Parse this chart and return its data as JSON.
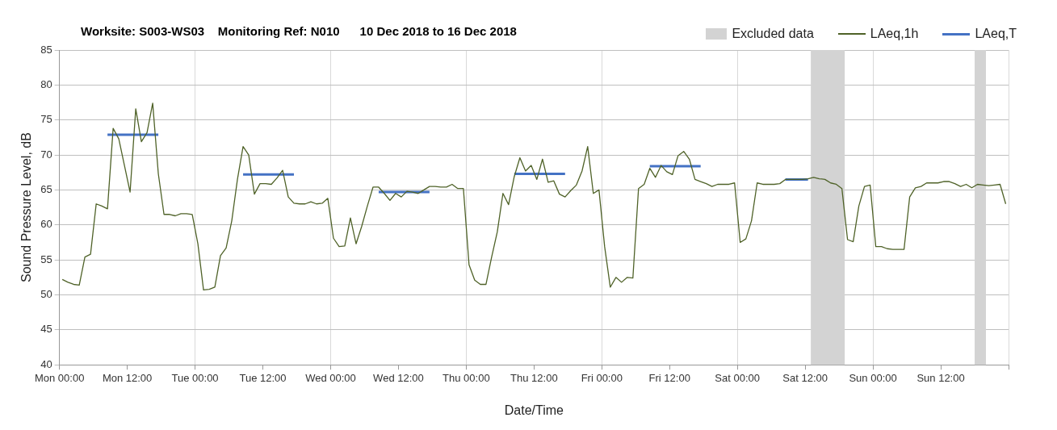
{
  "chart_data": {
    "type": "line",
    "title": "Worksite: S003-WS03    Monitoring Ref: N010      10 Dec 2018 to 16 Dec 2018",
    "xlabel": "Date/Time",
    "ylabel": "Sound Pressure Level, dB",
    "xlim": [
      "2018-12-10T00:00",
      "2018-12-17T00:00"
    ],
    "xticks": [
      {
        "value": "2018-12-10T00:00",
        "label": "Mon 00:00"
      },
      {
        "value": "2018-12-10T12:00",
        "label": "Mon 12:00"
      },
      {
        "value": "2018-12-11T00:00",
        "label": "Tue 00:00"
      },
      {
        "value": "2018-12-11T12:00",
        "label": "Tue 12:00"
      },
      {
        "value": "2018-12-12T00:00",
        "label": "Wed 00:00"
      },
      {
        "value": "2018-12-12T12:00",
        "label": "Wed 12:00"
      },
      {
        "value": "2018-12-13T00:00",
        "label": "Thu 00:00"
      },
      {
        "value": "2018-12-13T12:00",
        "label": "Thu 12:00"
      },
      {
        "value": "2018-12-14T00:00",
        "label": "Fri 00:00"
      },
      {
        "value": "2018-12-14T12:00",
        "label": "Fri 12:00"
      },
      {
        "value": "2018-12-15T00:00",
        "label": "Sat 00:00"
      },
      {
        "value": "2018-12-15T12:00",
        "label": "Sat 12:00"
      },
      {
        "value": "2018-12-16T00:00",
        "label": "Sun 00:00"
      },
      {
        "value": "2018-12-16T12:00",
        "label": "Sun 12:00"
      },
      {
        "value": "2018-12-17T00:00",
        "label": null
      }
    ],
    "ylim": [
      40,
      85
    ],
    "yticks": [
      40,
      45,
      50,
      55,
      60,
      65,
      70,
      75,
      80,
      85
    ],
    "grid": true,
    "legend": "top right",
    "marker": "none",
    "line_style": "solid",
    "bands": [
      {
        "axis": "x",
        "from": "2018-12-15T13:00",
        "to": "2018-12-15T19:00",
        "label": "Excluded data",
        "color": "#d3d3d3"
      },
      {
        "axis": "x",
        "from": "2018-12-16T18:00",
        "to": "2018-12-16T20:00",
        "color": "#d3d3d3"
      }
    ],
    "series": [
      {
        "name": "LAeq,1h",
        "color": "#4f6228",
        "x": [
          "2018-12-10T00:30",
          "2018-12-10T01:30",
          "2018-12-10T02:30",
          "2018-12-10T03:30",
          "2018-12-10T04:30",
          "2018-12-10T05:30",
          "2018-12-10T06:30",
          "2018-12-10T07:30",
          "2018-12-10T08:30",
          "2018-12-10T09:30",
          "2018-12-10T10:30",
          "2018-12-10T11:30",
          "2018-12-10T12:30",
          "2018-12-10T13:30",
          "2018-12-10T14:30",
          "2018-12-10T15:30",
          "2018-12-10T16:30",
          "2018-12-10T17:30",
          "2018-12-10T18:30",
          "2018-12-10T19:30",
          "2018-12-10T20:30",
          "2018-12-10T21:30",
          "2018-12-10T22:30",
          "2018-12-10T23:30",
          "2018-12-11T00:30",
          "2018-12-11T01:30",
          "2018-12-11T02:30",
          "2018-12-11T03:30",
          "2018-12-11T04:30",
          "2018-12-11T05:30",
          "2018-12-11T06:30",
          "2018-12-11T07:30",
          "2018-12-11T08:30",
          "2018-12-11T09:30",
          "2018-12-11T10:30",
          "2018-12-11T11:30",
          "2018-12-11T12:30",
          "2018-12-11T13:30",
          "2018-12-11T14:30",
          "2018-12-11T15:30",
          "2018-12-11T16:30",
          "2018-12-11T17:30",
          "2018-12-11T18:30",
          "2018-12-11T19:30",
          "2018-12-11T20:30",
          "2018-12-11T21:30",
          "2018-12-11T22:30",
          "2018-12-11T23:30",
          "2018-12-12T00:30",
          "2018-12-12T01:30",
          "2018-12-12T02:30",
          "2018-12-12T03:30",
          "2018-12-12T04:30",
          "2018-12-12T05:30",
          "2018-12-12T06:30",
          "2018-12-12T07:30",
          "2018-12-12T08:30",
          "2018-12-12T09:30",
          "2018-12-12T10:30",
          "2018-12-12T11:30",
          "2018-12-12T12:30",
          "2018-12-12T13:30",
          "2018-12-12T14:30",
          "2018-12-12T15:30",
          "2018-12-12T16:30",
          "2018-12-12T17:30",
          "2018-12-12T18:30",
          "2018-12-12T19:30",
          "2018-12-12T20:30",
          "2018-12-12T21:30",
          "2018-12-12T22:30",
          "2018-12-12T23:30",
          "2018-12-13T00:30",
          "2018-12-13T01:30",
          "2018-12-13T02:30",
          "2018-12-13T03:30",
          "2018-12-13T04:30",
          "2018-12-13T05:30",
          "2018-12-13T06:30",
          "2018-12-13T07:30",
          "2018-12-13T08:30",
          "2018-12-13T09:30",
          "2018-12-13T10:30",
          "2018-12-13T11:30",
          "2018-12-13T12:30",
          "2018-12-13T13:30",
          "2018-12-13T14:30",
          "2018-12-13T15:30",
          "2018-12-13T16:30",
          "2018-12-13T17:30",
          "2018-12-13T18:30",
          "2018-12-13T19:30",
          "2018-12-13T20:30",
          "2018-12-13T21:30",
          "2018-12-13T22:30",
          "2018-12-13T23:30",
          "2018-12-14T00:30",
          "2018-12-14T01:30",
          "2018-12-14T02:30",
          "2018-12-14T03:30",
          "2018-12-14T04:30",
          "2018-12-14T05:30",
          "2018-12-14T06:30",
          "2018-12-14T07:30",
          "2018-12-14T08:30",
          "2018-12-14T09:30",
          "2018-12-14T10:30",
          "2018-12-14T11:30",
          "2018-12-14T12:30",
          "2018-12-14T13:30",
          "2018-12-14T14:30",
          "2018-12-14T15:30",
          "2018-12-14T16:30",
          "2018-12-14T17:30",
          "2018-12-14T18:30",
          "2018-12-14T19:30",
          "2018-12-14T20:30",
          "2018-12-14T21:30",
          "2018-12-14T22:30",
          "2018-12-14T23:30",
          "2018-12-15T00:30",
          "2018-12-15T01:30",
          "2018-12-15T02:30",
          "2018-12-15T03:30",
          "2018-12-15T04:30",
          "2018-12-15T05:30",
          "2018-12-15T06:30",
          "2018-12-15T07:30",
          "2018-12-15T08:30",
          "2018-12-15T09:30",
          "2018-12-15T10:30",
          "2018-12-15T11:30",
          "2018-12-15T12:30",
          "2018-12-15T13:30",
          "2018-12-15T14:30",
          "2018-12-15T15:30",
          "2018-12-15T16:30",
          "2018-12-15T17:30",
          "2018-12-15T18:30",
          "2018-12-15T19:30",
          "2018-12-15T20:30",
          "2018-12-15T21:30",
          "2018-12-15T22:30",
          "2018-12-15T23:30",
          "2018-12-16T00:30",
          "2018-12-16T01:30",
          "2018-12-16T02:30",
          "2018-12-16T03:30",
          "2018-12-16T04:30",
          "2018-12-16T05:30",
          "2018-12-16T06:30",
          "2018-12-16T07:30",
          "2018-12-16T08:30",
          "2018-12-16T09:30",
          "2018-12-16T10:30",
          "2018-12-16T11:30",
          "2018-12-16T12:30",
          "2018-12-16T13:30",
          "2018-12-16T14:30",
          "2018-12-16T15:30",
          "2018-12-16T16:30",
          "2018-12-16T17:30",
          "2018-12-16T18:30",
          "2018-12-16T19:30",
          "2018-12-16T20:30",
          "2018-12-16T21:30",
          "2018-12-16T22:30",
          "2018-12-16T23:30"
        ],
        "values": [
          52.2,
          51.8,
          51.5,
          51.4,
          55.4,
          55.8,
          63.0,
          62.7,
          62.3,
          73.8,
          72.3,
          68.5,
          64.7,
          76.6,
          71.9,
          73.2,
          77.4,
          67.3,
          61.5,
          61.5,
          61.3,
          61.6,
          61.6,
          61.5,
          57.3,
          50.7,
          50.8,
          51.1,
          55.6,
          56.7,
          60.6,
          66.5,
          71.2,
          70.0,
          64.4,
          65.9,
          65.9,
          65.8,
          66.7,
          67.8,
          64.0,
          63.1,
          63.0,
          63.0,
          63.3,
          63.0,
          63.1,
          63.8,
          58.1,
          56.9,
          57.0,
          61.0,
          57.3,
          59.8,
          62.7,
          65.4,
          65.4,
          64.5,
          63.5,
          64.5,
          64.0,
          64.8,
          64.7,
          64.5,
          65.0,
          65.5,
          65.5,
          65.4,
          65.4,
          65.8,
          65.2,
          65.2,
          54.3,
          52.1,
          51.5,
          51.5,
          55.4,
          59.0,
          64.5,
          62.9,
          66.9,
          69.6,
          67.7,
          68.5,
          66.5,
          69.4,
          66.1,
          66.3,
          64.4,
          64.0,
          64.9,
          65.7,
          67.7,
          71.2,
          64.5,
          65.0,
          56.9,
          51.1,
          52.5,
          51.8,
          52.5,
          52.4,
          65.2,
          65.8,
          68.1,
          66.8,
          68.5,
          67.6,
          67.2,
          69.9,
          70.5,
          69.4,
          66.5,
          66.2,
          65.9,
          65.5,
          65.8,
          65.8,
          65.8,
          66.0,
          57.5,
          58.0,
          60.6,
          66.0,
          65.8,
          65.8,
          65.8,
          65.9,
          66.5,
          66.5,
          66.5,
          66.5,
          66.6,
          66.8,
          66.6,
          66.5,
          66.0,
          65.8,
          65.2,
          57.9,
          57.6,
          62.7,
          65.5,
          65.7,
          56.9,
          56.9,
          56.6,
          56.5,
          56.5,
          56.5,
          64.0,
          65.3,
          65.5,
          66.0,
          66.0,
          66.0,
          66.2,
          66.2,
          65.9,
          65.5,
          65.8,
          65.3,
          65.8,
          65.7,
          65.6,
          65.7,
          65.8,
          63.0
        ]
      },
      {
        "name": "LAeq,T",
        "color": "#4472c4",
        "x": [
          "2018-12-10T08:30",
          "2018-12-10T17:30",
          "2018-12-11T01:00",
          "2018-12-11T08:30",
          "2018-12-11T17:30",
          "2018-12-12T01:00",
          "2018-12-12T08:30",
          "2018-12-12T17:30",
          "2018-12-13T01:00",
          "2018-12-13T08:30",
          "2018-12-13T17:30",
          "2018-12-14T01:00",
          "2018-12-14T08:30",
          "2018-12-14T17:30",
          "2018-12-15T01:00",
          "2018-12-15T08:30",
          "2018-12-15T12:30"
        ],
        "values": [
          72.9,
          72.9,
          null,
          67.2,
          67.2,
          null,
          64.7,
          64.7,
          null,
          67.3,
          67.3,
          null,
          68.4,
          68.4,
          null,
          66.5,
          66.5
        ]
      }
    ]
  }
}
